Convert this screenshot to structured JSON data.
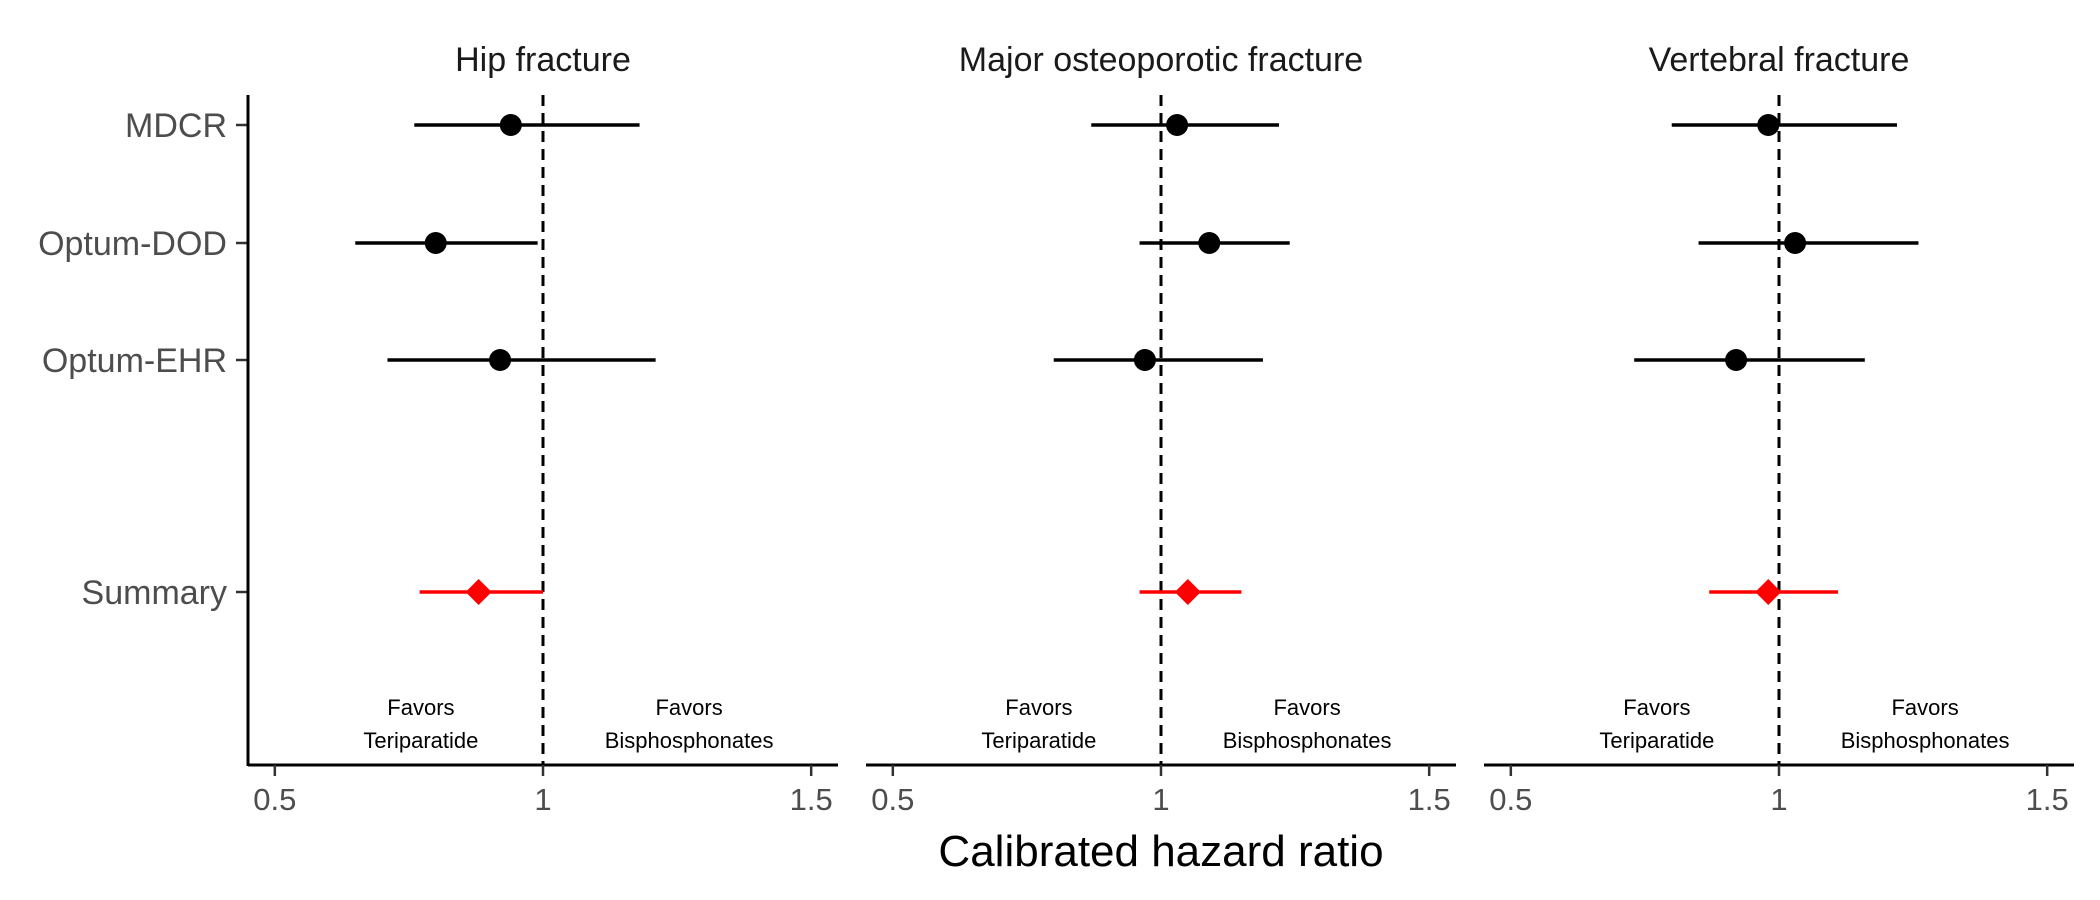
{
  "chart_data": {
    "type": "forest",
    "xlabel": "Calibrated hazard ratio",
    "xlim": [
      0.45,
      1.55
    ],
    "x_ticks": [
      0.5,
      1,
      1.5
    ],
    "x_tick_labels": [
      "0.5",
      "1",
      "1.5"
    ],
    "reference_line": 1,
    "row_labels": [
      "MDCR",
      "Optum-DOD",
      "Optum-EHR",
      "Summary"
    ],
    "annotations": {
      "left": [
        "Favors",
        "Teriparatide"
      ],
      "right": [
        "Favors",
        "Bisphosphonates"
      ]
    },
    "colors": {
      "estimate": "#000000",
      "summary": "#ff0000"
    },
    "panels": [
      {
        "title": "Hip fracture",
        "estimates": [
          {
            "source": "MDCR",
            "hr": 0.94,
            "lower": 0.76,
            "upper": 1.18
          },
          {
            "source": "Optum-DOD",
            "hr": 0.8,
            "lower": 0.65,
            "upper": 0.99
          },
          {
            "source": "Optum-EHR",
            "hr": 0.92,
            "lower": 0.71,
            "upper": 1.21
          }
        ],
        "summary": {
          "hr": 0.88,
          "lower": 0.77,
          "upper": 1.0
        }
      },
      {
        "title": "Major osteoporotic fracture",
        "estimates": [
          {
            "source": "MDCR",
            "hr": 1.03,
            "lower": 0.87,
            "upper": 1.22
          },
          {
            "source": "Optum-DOD",
            "hr": 1.09,
            "lower": 0.96,
            "upper": 1.24
          },
          {
            "source": "Optum-EHR",
            "hr": 0.97,
            "lower": 0.8,
            "upper": 1.19
          }
        ],
        "summary": {
          "hr": 1.05,
          "lower": 0.96,
          "upper": 1.15
        }
      },
      {
        "title": "Vertebral fracture",
        "estimates": [
          {
            "source": "MDCR",
            "hr": 0.98,
            "lower": 0.8,
            "upper": 1.22
          },
          {
            "source": "Optum-DOD",
            "hr": 1.03,
            "lower": 0.85,
            "upper": 1.26
          },
          {
            "source": "Optum-EHR",
            "hr": 0.92,
            "lower": 0.73,
            "upper": 1.16
          }
        ],
        "summary": {
          "hr": 0.98,
          "lower": 0.87,
          "upper": 1.11
        }
      }
    ]
  }
}
